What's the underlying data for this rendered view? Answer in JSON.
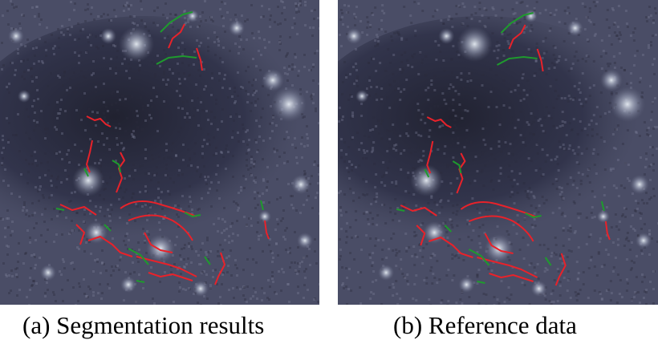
{
  "figure": {
    "panels": [
      {
        "label": "(a) Segmentation results"
      },
      {
        "label": "(b) Reference data"
      }
    ],
    "colors": {
      "trace_red": "#e8222a",
      "trace_green": "#1f9a2e",
      "background": "#3a3d52"
    }
  }
}
